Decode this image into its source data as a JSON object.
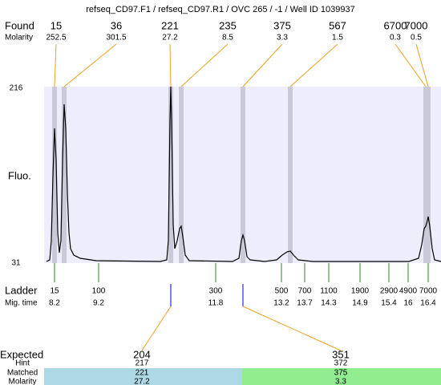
{
  "header": {
    "title": "refseq_CD97.F1 / refseq_CD97.R1 / OVC 265 / -1 / Well ID 1039937"
  },
  "found": {
    "label": "Found",
    "molarity_label": "Molarity",
    "peaks": [
      {
        "size": "15",
        "molarity": "252.5"
      },
      {
        "size": "36",
        "molarity": "301.5"
      },
      {
        "size": "221",
        "molarity": "27.2"
      },
      {
        "size": "235",
        "molarity": "8.5"
      },
      {
        "size": "375",
        "molarity": "3.3"
      },
      {
        "size": "567",
        "molarity": "1.5"
      },
      {
        "size": "6700",
        "molarity": "0.3"
      },
      {
        "size": "7000",
        "molarity": "0.5"
      }
    ]
  },
  "plot": {
    "y_label": "Fluo.",
    "y_max": "216",
    "y_min": "31"
  },
  "ladder": {
    "label": "Ladder",
    "time_label": "Mig. time",
    "steps": [
      {
        "size": "15",
        "time": "8.2"
      },
      {
        "size": "100",
        "time": "9.2"
      },
      {
        "size": "300",
        "time": "11.8"
      },
      {
        "size": "500",
        "time": "13.2"
      },
      {
        "size": "700",
        "time": "13.7"
      },
      {
        "size": "1100",
        "time": "14.3"
      },
      {
        "size": "1900",
        "time": "14.9"
      },
      {
        "size": "2900",
        "time": "15.4"
      },
      {
        "size": "4900",
        "time": "16"
      },
      {
        "size": "7000",
        "time": "16.4"
      }
    ]
  },
  "expected": {
    "labels": {
      "expected": "Expected",
      "hint": "Hint",
      "matched": "Matched",
      "molarity": "Molarity"
    },
    "items": [
      {
        "expected": "204",
        "hint": "217",
        "matched": "221",
        "molarity": "27.2"
      },
      {
        "expected": "351",
        "hint": "372",
        "matched": "375",
        "molarity": "3.3"
      }
    ]
  }
}
